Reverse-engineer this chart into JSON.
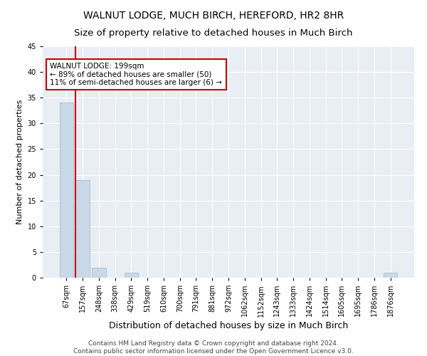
{
  "title": "WALNUT LODGE, MUCH BIRCH, HEREFORD, HR2 8HR",
  "subtitle": "Size of property relative to detached houses in Much Birch",
  "xlabel": "Distribution of detached houses by size in Much Birch",
  "ylabel": "Number of detached properties",
  "categories": [
    "67sqm",
    "157sqm",
    "248sqm",
    "338sqm",
    "429sqm",
    "519sqm",
    "610sqm",
    "700sqm",
    "791sqm",
    "881sqm",
    "972sqm",
    "1062sqm",
    "1152sqm",
    "1243sqm",
    "1333sqm",
    "1424sqm",
    "1514sqm",
    "1605sqm",
    "1695sqm",
    "1786sqm",
    "1876sqm"
  ],
  "values": [
    34,
    19,
    2,
    0,
    1,
    0,
    0,
    0,
    0,
    0,
    0,
    0,
    0,
    0,
    0,
    0,
    0,
    0,
    0,
    0,
    1
  ],
  "bar_color": "#c8d8e8",
  "bar_edge_color": "#a0b8cc",
  "vline_x_index": 1,
  "vline_color": "#cc0000",
  "annotation_text": "WALNUT LODGE: 199sqm\n← 89% of detached houses are smaller (50)\n11% of semi-detached houses are larger (6) →",
  "annotation_box_color": "#ffffff",
  "annotation_box_edge": "#cc0000",
  "ylim": [
    0,
    45
  ],
  "yticks": [
    0,
    5,
    10,
    15,
    20,
    25,
    30,
    35,
    40,
    45
  ],
  "footer_line1": "Contains HM Land Registry data © Crown copyright and database right 2024.",
  "footer_line2": "Contains public sector information licensed under the Open Government Licence v3.0.",
  "bg_color": "#ffffff",
  "plot_bg_color": "#e8eef4",
  "grid_color": "#ffffff",
  "title_fontsize": 10,
  "subtitle_fontsize": 9.5,
  "xlabel_fontsize": 9,
  "ylabel_fontsize": 8,
  "tick_fontsize": 7,
  "footer_fontsize": 6.5,
  "annotation_fontsize": 7.5
}
